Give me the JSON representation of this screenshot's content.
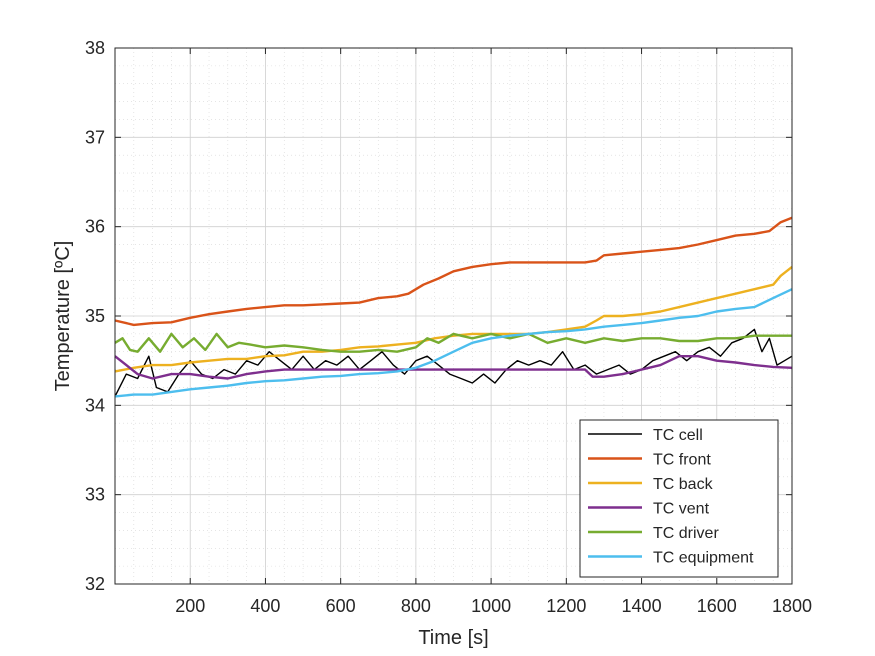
{
  "chart_data": {
    "type": "line",
    "title": "",
    "xlabel": "Time [s]",
    "ylabel": "Temperature [ºC]",
    "xlim": [
      0,
      1800
    ],
    "ylim": [
      32,
      38
    ],
    "xticks": [
      "200",
      "400",
      "600",
      "800",
      "1000",
      "1200",
      "1400",
      "1600",
      "1800"
    ],
    "yticks": [
      "32",
      "33",
      "34",
      "35",
      "36",
      "37",
      "38"
    ],
    "grid": true,
    "minor_grid": true,
    "legend_position": "bottom-right",
    "series": [
      {
        "name": "TC cell",
        "color": "#000000",
        "points": [
          [
            0,
            34.1
          ],
          [
            30,
            34.35
          ],
          [
            60,
            34.3
          ],
          [
            90,
            34.55
          ],
          [
            110,
            34.2
          ],
          [
            140,
            34.15
          ],
          [
            170,
            34.35
          ],
          [
            200,
            34.5
          ],
          [
            230,
            34.35
          ],
          [
            260,
            34.3
          ],
          [
            290,
            34.4
          ],
          [
            320,
            34.35
          ],
          [
            350,
            34.5
          ],
          [
            380,
            34.45
          ],
          [
            410,
            34.6
          ],
          [
            440,
            34.5
          ],
          [
            470,
            34.4
          ],
          [
            500,
            34.55
          ],
          [
            530,
            34.4
          ],
          [
            560,
            34.5
          ],
          [
            590,
            34.45
          ],
          [
            620,
            34.55
          ],
          [
            650,
            34.4
          ],
          [
            680,
            34.5
          ],
          [
            710,
            34.6
          ],
          [
            740,
            34.45
          ],
          [
            770,
            34.35
          ],
          [
            800,
            34.5
          ],
          [
            830,
            34.55
          ],
          [
            860,
            34.45
          ],
          [
            890,
            34.35
          ],
          [
            920,
            34.3
          ],
          [
            950,
            34.25
          ],
          [
            980,
            34.35
          ],
          [
            1010,
            34.25
          ],
          [
            1040,
            34.4
          ],
          [
            1070,
            34.5
          ],
          [
            1100,
            34.45
          ],
          [
            1130,
            34.5
          ],
          [
            1160,
            34.45
          ],
          [
            1190,
            34.6
          ],
          [
            1220,
            34.4
          ],
          [
            1250,
            34.45
          ],
          [
            1280,
            34.35
          ],
          [
            1310,
            34.4
          ],
          [
            1340,
            34.45
          ],
          [
            1370,
            34.35
          ],
          [
            1400,
            34.4
          ],
          [
            1430,
            34.5
          ],
          [
            1460,
            34.55
          ],
          [
            1490,
            34.6
          ],
          [
            1520,
            34.5
          ],
          [
            1550,
            34.6
          ],
          [
            1580,
            34.65
          ],
          [
            1610,
            34.55
          ],
          [
            1640,
            34.7
          ],
          [
            1670,
            34.75
          ],
          [
            1700,
            34.85
          ],
          [
            1720,
            34.6
          ],
          [
            1740,
            34.75
          ],
          [
            1760,
            34.45
          ],
          [
            1780,
            34.5
          ],
          [
            1800,
            34.55
          ]
        ]
      },
      {
        "name": "TC front",
        "color": "#D95319",
        "points": [
          [
            0,
            34.95
          ],
          [
            50,
            34.9
          ],
          [
            100,
            34.92
          ],
          [
            150,
            34.93
          ],
          [
            200,
            34.98
          ],
          [
            250,
            35.02
          ],
          [
            300,
            35.05
          ],
          [
            350,
            35.08
          ],
          [
            400,
            35.1
          ],
          [
            450,
            35.12
          ],
          [
            500,
            35.12
          ],
          [
            550,
            35.13
          ],
          [
            600,
            35.14
          ],
          [
            650,
            35.15
          ],
          [
            700,
            35.2
          ],
          [
            750,
            35.22
          ],
          [
            780,
            35.25
          ],
          [
            820,
            35.35
          ],
          [
            860,
            35.42
          ],
          [
            900,
            35.5
          ],
          [
            950,
            35.55
          ],
          [
            1000,
            35.58
          ],
          [
            1050,
            35.6
          ],
          [
            1100,
            35.6
          ],
          [
            1150,
            35.6
          ],
          [
            1200,
            35.6
          ],
          [
            1250,
            35.6
          ],
          [
            1280,
            35.62
          ],
          [
            1300,
            35.68
          ],
          [
            1350,
            35.7
          ],
          [
            1400,
            35.72
          ],
          [
            1450,
            35.74
          ],
          [
            1500,
            35.76
          ],
          [
            1550,
            35.8
          ],
          [
            1600,
            35.85
          ],
          [
            1650,
            35.9
          ],
          [
            1700,
            35.92
          ],
          [
            1740,
            35.95
          ],
          [
            1770,
            36.05
          ],
          [
            1800,
            36.1
          ]
        ]
      },
      {
        "name": "TC back",
        "color": "#EDB120",
        "points": [
          [
            0,
            34.38
          ],
          [
            50,
            34.42
          ],
          [
            100,
            34.45
          ],
          [
            150,
            34.45
          ],
          [
            200,
            34.48
          ],
          [
            250,
            34.5
          ],
          [
            300,
            34.52
          ],
          [
            350,
            34.52
          ],
          [
            400,
            34.55
          ],
          [
            450,
            34.56
          ],
          [
            500,
            34.6
          ],
          [
            550,
            34.6
          ],
          [
            600,
            34.62
          ],
          [
            650,
            34.65
          ],
          [
            700,
            34.66
          ],
          [
            750,
            34.68
          ],
          [
            800,
            34.7
          ],
          [
            850,
            34.75
          ],
          [
            900,
            34.78
          ],
          [
            950,
            34.8
          ],
          [
            1000,
            34.8
          ],
          [
            1050,
            34.8
          ],
          [
            1100,
            34.8
          ],
          [
            1150,
            34.82
          ],
          [
            1200,
            34.85
          ],
          [
            1250,
            34.88
          ],
          [
            1280,
            34.95
          ],
          [
            1300,
            35.0
          ],
          [
            1350,
            35.0
          ],
          [
            1400,
            35.02
          ],
          [
            1450,
            35.05
          ],
          [
            1500,
            35.1
          ],
          [
            1550,
            35.15
          ],
          [
            1600,
            35.2
          ],
          [
            1650,
            35.25
          ],
          [
            1700,
            35.3
          ],
          [
            1750,
            35.35
          ],
          [
            1770,
            35.45
          ],
          [
            1800,
            35.55
          ]
        ]
      },
      {
        "name": "TC vent",
        "color": "#7E2F8E",
        "points": [
          [
            0,
            34.55
          ],
          [
            30,
            34.45
          ],
          [
            60,
            34.35
          ],
          [
            100,
            34.3
          ],
          [
            150,
            34.35
          ],
          [
            200,
            34.35
          ],
          [
            250,
            34.32
          ],
          [
            300,
            34.3
          ],
          [
            350,
            34.35
          ],
          [
            400,
            34.38
          ],
          [
            450,
            34.4
          ],
          [
            500,
            34.4
          ],
          [
            550,
            34.4
          ],
          [
            600,
            34.4
          ],
          [
            650,
            34.4
          ],
          [
            700,
            34.4
          ],
          [
            750,
            34.4
          ],
          [
            800,
            34.4
          ],
          [
            850,
            34.4
          ],
          [
            900,
            34.4
          ],
          [
            950,
            34.4
          ],
          [
            1000,
            34.4
          ],
          [
            1050,
            34.4
          ],
          [
            1100,
            34.4
          ],
          [
            1150,
            34.4
          ],
          [
            1200,
            34.4
          ],
          [
            1250,
            34.4
          ],
          [
            1270,
            34.32
          ],
          [
            1300,
            34.32
          ],
          [
            1350,
            34.35
          ],
          [
            1400,
            34.4
          ],
          [
            1450,
            34.45
          ],
          [
            1500,
            34.55
          ],
          [
            1550,
            34.55
          ],
          [
            1600,
            34.5
          ],
          [
            1650,
            34.48
          ],
          [
            1700,
            34.45
          ],
          [
            1750,
            34.43
          ],
          [
            1800,
            34.42
          ]
        ]
      },
      {
        "name": "TC driver",
        "color": "#77AC30",
        "points": [
          [
            0,
            34.7
          ],
          [
            20,
            34.75
          ],
          [
            40,
            34.62
          ],
          [
            60,
            34.6
          ],
          [
            90,
            34.75
          ],
          [
            120,
            34.6
          ],
          [
            150,
            34.8
          ],
          [
            180,
            34.65
          ],
          [
            210,
            34.75
          ],
          [
            240,
            34.62
          ],
          [
            270,
            34.8
          ],
          [
            300,
            34.65
          ],
          [
            330,
            34.7
          ],
          [
            360,
            34.68
          ],
          [
            400,
            34.65
          ],
          [
            450,
            34.67
          ],
          [
            500,
            34.65
          ],
          [
            550,
            34.62
          ],
          [
            600,
            34.6
          ],
          [
            650,
            34.6
          ],
          [
            700,
            34.62
          ],
          [
            750,
            34.6
          ],
          [
            800,
            34.65
          ],
          [
            830,
            34.75
          ],
          [
            860,
            34.7
          ],
          [
            900,
            34.8
          ],
          [
            950,
            34.75
          ],
          [
            1000,
            34.8
          ],
          [
            1050,
            34.75
          ],
          [
            1100,
            34.8
          ],
          [
            1150,
            34.7
          ],
          [
            1200,
            34.75
          ],
          [
            1250,
            34.7
          ],
          [
            1300,
            34.75
          ],
          [
            1350,
            34.72
          ],
          [
            1400,
            34.75
          ],
          [
            1450,
            34.75
          ],
          [
            1500,
            34.72
          ],
          [
            1550,
            34.72
          ],
          [
            1600,
            34.75
          ],
          [
            1650,
            34.75
          ],
          [
            1700,
            34.78
          ],
          [
            1750,
            34.78
          ],
          [
            1800,
            34.78
          ]
        ]
      },
      {
        "name": "TC equipment",
        "color": "#4DBEEE",
        "points": [
          [
            0,
            34.1
          ],
          [
            50,
            34.12
          ],
          [
            100,
            34.12
          ],
          [
            150,
            34.15
          ],
          [
            200,
            34.18
          ],
          [
            250,
            34.2
          ],
          [
            300,
            34.22
          ],
          [
            350,
            34.25
          ],
          [
            400,
            34.27
          ],
          [
            450,
            34.28
          ],
          [
            500,
            34.3
          ],
          [
            550,
            34.32
          ],
          [
            600,
            34.33
          ],
          [
            650,
            34.35
          ],
          [
            700,
            34.36
          ],
          [
            750,
            34.38
          ],
          [
            800,
            34.42
          ],
          [
            850,
            34.5
          ],
          [
            900,
            34.6
          ],
          [
            950,
            34.7
          ],
          [
            1000,
            34.75
          ],
          [
            1050,
            34.78
          ],
          [
            1100,
            34.8
          ],
          [
            1150,
            34.82
          ],
          [
            1200,
            34.83
          ],
          [
            1250,
            34.85
          ],
          [
            1300,
            34.88
          ],
          [
            1350,
            34.9
          ],
          [
            1400,
            34.92
          ],
          [
            1450,
            34.95
          ],
          [
            1500,
            34.98
          ],
          [
            1550,
            35.0
          ],
          [
            1600,
            35.05
          ],
          [
            1650,
            35.08
          ],
          [
            1700,
            35.1
          ],
          [
            1750,
            35.2
          ],
          [
            1800,
            35.3
          ]
        ]
      }
    ]
  }
}
